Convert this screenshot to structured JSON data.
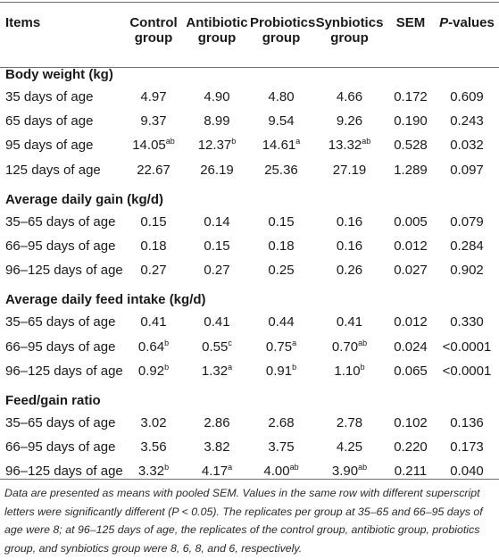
{
  "headers": {
    "items": "Items",
    "control_1": "Control",
    "control_2": "group",
    "antibiotic_1": "Antibiotic",
    "antibiotic_2": "group",
    "probiotics_1": "Probiotics",
    "probiotics_2": "group",
    "synbiotics_1": "Synbiotics",
    "synbiotics_2": "group",
    "sem": "SEM",
    "p_italic": "P",
    "p_rest": "-values"
  },
  "sections": [
    {
      "title": "Body weight (kg)",
      "rows": [
        {
          "label": "35 days of age",
          "cells": [
            [
              "4.97",
              ""
            ],
            [
              "4.90",
              ""
            ],
            [
              "4.80",
              ""
            ],
            [
              "4.66",
              ""
            ],
            [
              "0.172",
              ""
            ],
            [
              "0.609",
              ""
            ]
          ]
        },
        {
          "label": "65 days of age",
          "cells": [
            [
              "9.37",
              ""
            ],
            [
              "8.99",
              ""
            ],
            [
              "9.54",
              ""
            ],
            [
              "9.26",
              ""
            ],
            [
              "0.190",
              ""
            ],
            [
              "0.243",
              ""
            ]
          ]
        },
        {
          "label": "95 days of age",
          "cells": [
            [
              "14.05",
              "ab"
            ],
            [
              "12.37",
              "b"
            ],
            [
              "14.61",
              "a"
            ],
            [
              "13.32",
              "ab"
            ],
            [
              "0.528",
              ""
            ],
            [
              "0.032",
              ""
            ]
          ]
        },
        {
          "label": "125 days of age",
          "cells": [
            [
              "22.67",
              ""
            ],
            [
              "26.19",
              ""
            ],
            [
              "25.36",
              ""
            ],
            [
              "27.19",
              ""
            ],
            [
              "1.289",
              ""
            ],
            [
              "0.097",
              ""
            ]
          ]
        }
      ]
    },
    {
      "title": "Average daily gain (kg/d)",
      "rows": [
        {
          "label": "35–65 days of age",
          "cells": [
            [
              "0.15",
              ""
            ],
            [
              "0.14",
              ""
            ],
            [
              "0.15",
              ""
            ],
            [
              "0.16",
              ""
            ],
            [
              "0.005",
              ""
            ],
            [
              "0.079",
              ""
            ]
          ]
        },
        {
          "label": "66–95 days of age",
          "cells": [
            [
              "0.18",
              ""
            ],
            [
              "0.15",
              ""
            ],
            [
              "0.18",
              ""
            ],
            [
              "0.16",
              ""
            ],
            [
              "0.012",
              ""
            ],
            [
              "0.284",
              ""
            ]
          ]
        },
        {
          "label": "96–125 days of age",
          "cells": [
            [
              "0.27",
              ""
            ],
            [
              "0.27",
              ""
            ],
            [
              "0.25",
              ""
            ],
            [
              "0.26",
              ""
            ],
            [
              "0.027",
              ""
            ],
            [
              "0.902",
              ""
            ]
          ]
        }
      ]
    },
    {
      "title": "Average daily feed intake (kg/d)",
      "rows": [
        {
          "label": "35–65 days of age",
          "cells": [
            [
              "0.41",
              ""
            ],
            [
              "0.41",
              ""
            ],
            [
              "0.44",
              ""
            ],
            [
              "0.41",
              ""
            ],
            [
              "0.012",
              ""
            ],
            [
              "0.330",
              ""
            ]
          ]
        },
        {
          "label": "66–95 days of age",
          "cells": [
            [
              "0.64",
              "b"
            ],
            [
              "0.55",
              "c"
            ],
            [
              "0.75",
              "a"
            ],
            [
              "0.70",
              "ab"
            ],
            [
              "0.024",
              ""
            ],
            [
              "<0.0001",
              ""
            ]
          ]
        },
        {
          "label": "96–125 days of age",
          "cells": [
            [
              "0.92",
              "b"
            ],
            [
              "1.32",
              "a"
            ],
            [
              "0.91",
              "b"
            ],
            [
              "1.10",
              "b"
            ],
            [
              "0.065",
              ""
            ],
            [
              "<0.0001",
              ""
            ]
          ]
        }
      ]
    },
    {
      "title": "Feed/gain ratio",
      "rows": [
        {
          "label": "35–65 days of age",
          "cells": [
            [
              "3.02",
              ""
            ],
            [
              "2.86",
              ""
            ],
            [
              "2.68",
              ""
            ],
            [
              "2.78",
              ""
            ],
            [
              "0.102",
              ""
            ],
            [
              "0.136",
              ""
            ]
          ]
        },
        {
          "label": "66–95 days of age",
          "cells": [
            [
              "3.56",
              ""
            ],
            [
              "3.82",
              ""
            ],
            [
              "3.75",
              ""
            ],
            [
              "4.25",
              ""
            ],
            [
              "0.220",
              ""
            ],
            [
              "0.173",
              ""
            ]
          ]
        },
        {
          "label": "96–125 days of age",
          "cells": [
            [
              "3.32",
              "b"
            ],
            [
              "4.17",
              "a"
            ],
            [
              "4.00",
              "ab"
            ],
            [
              "3.90",
              "ab"
            ],
            [
              "0.211",
              ""
            ],
            [
              "0.040",
              ""
            ]
          ]
        }
      ]
    }
  ],
  "note": "Data are presented as means with pooled SEM. Values in the same row with different superscript letters were significantly different (P < 0.05). The replicates per group at 35–65 and 66–95 days of age were 8; at 96–125 days of age, the replicates of the control group, antibiotic group, probiotics group, and synbiotics group were 8, 6, 8, and 6, respectively."
}
